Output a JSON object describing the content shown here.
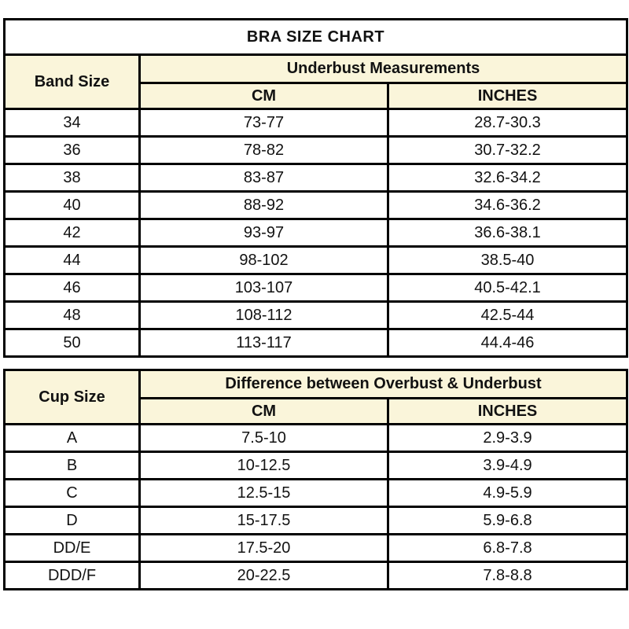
{
  "title": "BRA SIZE CHART",
  "band_table": {
    "col1_header": "Band Size",
    "group_header": "Underbust Measurements",
    "sub_headers": [
      "CM",
      "INCHES"
    ],
    "rows": [
      {
        "size": "34",
        "cm": "73-77",
        "inches": "28.7-30.3"
      },
      {
        "size": "36",
        "cm": "78-82",
        "inches": "30.7-32.2"
      },
      {
        "size": "38",
        "cm": "83-87",
        "inches": "32.6-34.2"
      },
      {
        "size": "40",
        "cm": "88-92",
        "inches": "34.6-36.2"
      },
      {
        "size": "42",
        "cm": "93-97",
        "inches": "36.6-38.1"
      },
      {
        "size": "44",
        "cm": "98-102",
        "inches": "38.5-40"
      },
      {
        "size": "46",
        "cm": "103-107",
        "inches": "40.5-42.1"
      },
      {
        "size": "48",
        "cm": "108-112",
        "inches": "42.5-44"
      },
      {
        "size": "50",
        "cm": "113-117",
        "inches": "44.4-46"
      }
    ]
  },
  "cup_table": {
    "col1_header": "Cup Size",
    "group_header": "Difference between Overbust & Underbust",
    "sub_headers": [
      "CM",
      "INCHES"
    ],
    "rows": [
      {
        "size": "A",
        "cm": "7.5-10",
        "inches": "2.9-3.9"
      },
      {
        "size": "B",
        "cm": "10-12.5",
        "inches": "3.9-4.9"
      },
      {
        "size": "C",
        "cm": "12.5-15",
        "inches": "4.9-5.9"
      },
      {
        "size": "D",
        "cm": "15-17.5",
        "inches": "5.9-6.8"
      },
      {
        "size": "DD/E",
        "cm": "17.5-20",
        "inches": "6.8-7.8"
      },
      {
        "size": "DDD/F",
        "cm": "20-22.5",
        "inches": "7.8-8.8"
      }
    ]
  },
  "colors": {
    "header_background": "#FAF5DA",
    "border": "#000000",
    "row_background": "#FFFFFF",
    "text": "#121212"
  }
}
